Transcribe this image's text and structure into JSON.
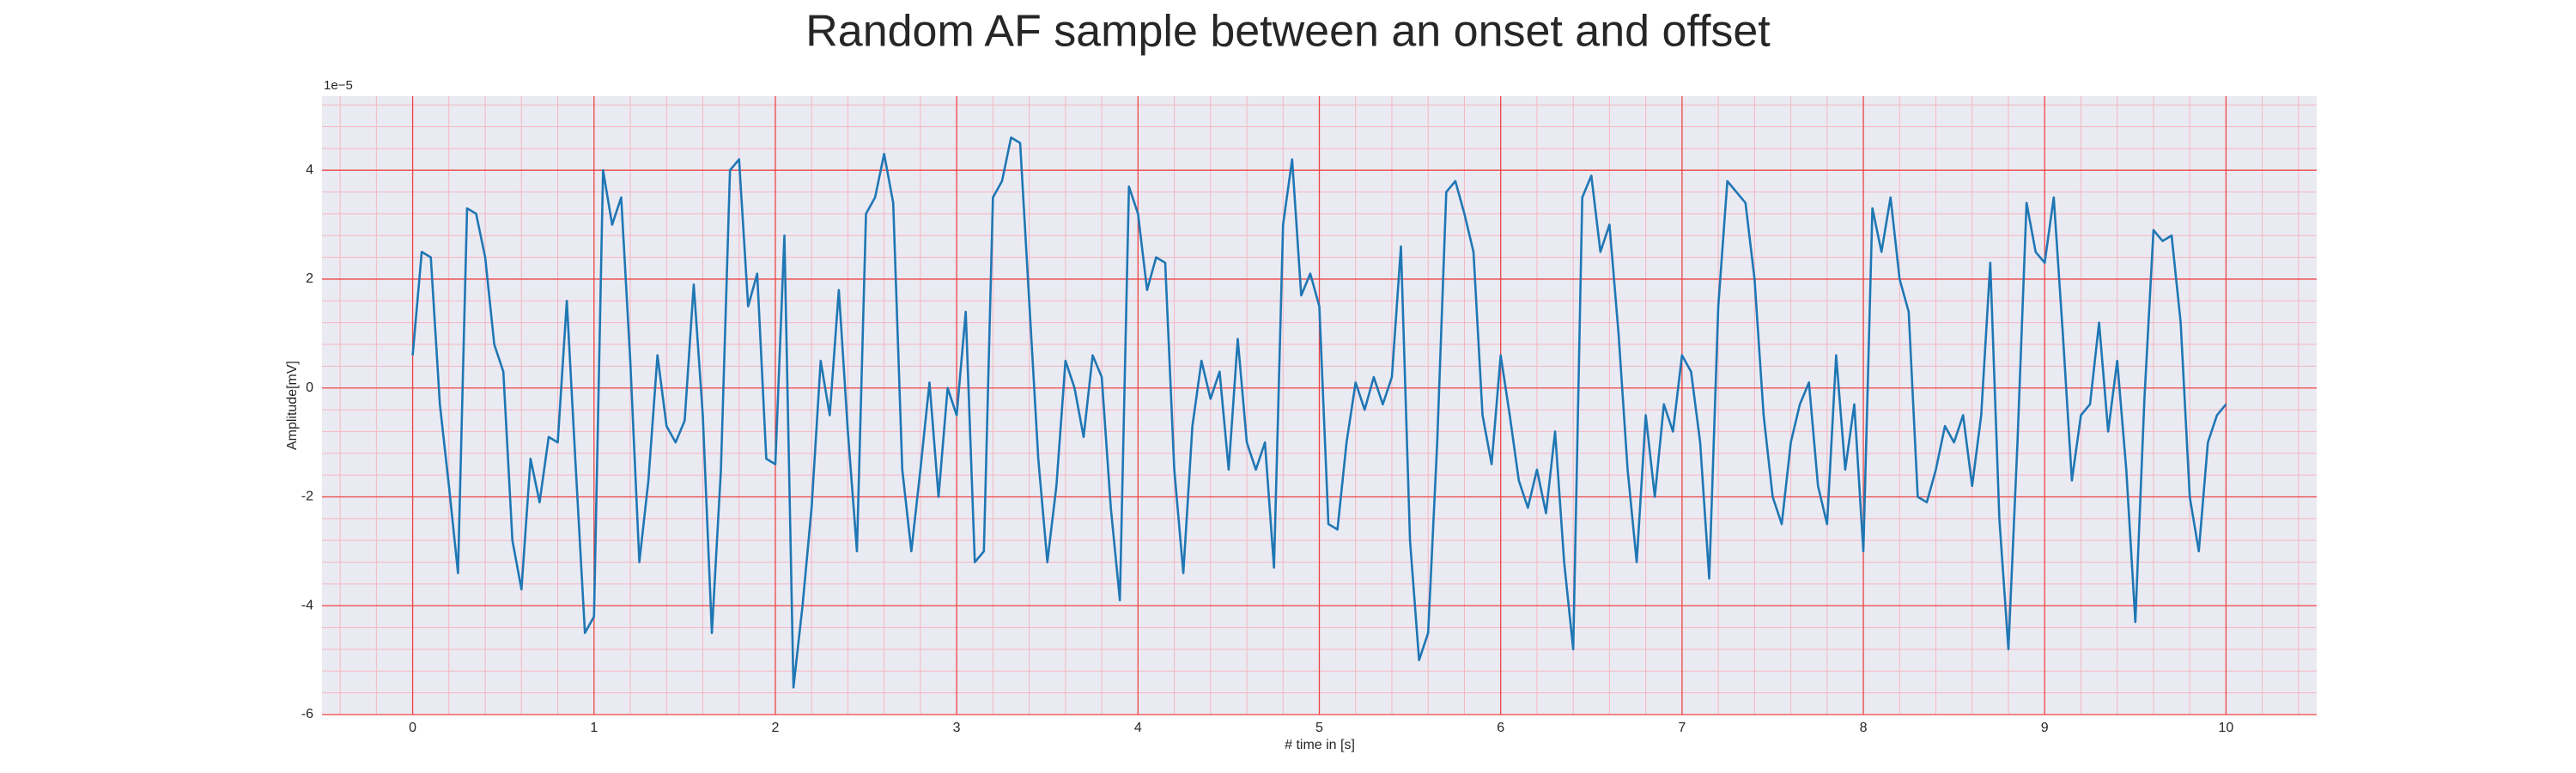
{
  "chart_data": {
    "type": "line",
    "title": "Random AF sample between an onset and offset",
    "xlabel": "# time in [s]",
    "ylabel": "Amplitude[mV]",
    "offset_text": "1e−5",
    "color": "#1f77b4",
    "xlim": [
      -0.5,
      10.5
    ],
    "xticks": [
      0,
      1,
      2,
      3,
      4,
      5,
      6,
      7,
      8,
      9,
      10
    ],
    "ylim": [
      -6,
      5.36
    ],
    "yticks": [
      -6,
      -4,
      -2,
      0,
      2,
      4
    ],
    "grid": true,
    "minor_grid": true,
    "x": [
      0,
      0.05,
      0.1,
      0.15,
      0.2,
      0.25,
      0.3,
      0.35,
      0.4,
      0.45,
      0.5,
      0.55,
      0.6,
      0.65,
      0.7,
      0.75,
      0.8,
      0.85,
      0.9,
      0.95,
      1,
      1.05,
      1.1,
      1.15,
      1.2,
      1.25,
      1.3,
      1.35,
      1.4,
      1.45,
      1.5,
      1.55,
      1.6,
      1.65,
      1.7,
      1.75,
      1.8,
      1.85,
      1.9,
      1.95,
      2,
      2.05,
      2.1,
      2.15,
      2.2,
      2.25,
      2.3,
      2.35,
      2.4,
      2.45,
      2.5,
      2.55,
      2.6,
      2.65,
      2.7,
      2.75,
      2.8,
      2.85,
      2.9,
      2.95,
      3,
      3.05,
      3.1,
      3.15,
      3.2,
      3.25,
      3.3,
      3.35,
      3.4,
      3.45,
      3.5,
      3.55,
      3.6,
      3.65,
      3.7,
      3.75,
      3.8,
      3.85,
      3.9,
      3.95,
      4,
      4.05,
      4.1,
      4.15,
      4.2,
      4.25,
      4.3,
      4.35,
      4.4,
      4.45,
      4.5,
      4.55,
      4.6,
      4.65,
      4.7,
      4.75,
      4.8,
      4.85,
      4.9,
      4.95,
      5,
      5.05,
      5.1,
      5.15,
      5.2,
      5.25,
      5.3,
      5.35,
      5.4,
      5.45,
      5.5,
      5.55,
      5.6,
      5.65,
      5.7,
      5.75,
      5.8,
      5.85,
      5.9,
      5.95,
      6,
      6.05,
      6.1,
      6.15,
      6.2,
      6.25,
      6.3,
      6.35,
      6.4,
      6.45,
      6.5,
      6.55,
      6.6,
      6.65,
      6.7,
      6.75,
      6.8,
      6.85,
      6.9,
      6.95,
      7,
      7.05,
      7.1,
      7.15,
      7.2,
      7.25,
      7.3,
      7.35,
      7.4,
      7.45,
      7.5,
      7.55,
      7.6,
      7.65,
      7.7,
      7.75,
      7.8,
      7.85,
      7.9,
      7.95,
      8,
      8.05,
      8.1,
      8.15,
      8.2,
      8.25,
      8.3,
      8.35,
      8.4,
      8.45,
      8.5,
      8.55,
      8.6,
      8.65,
      8.7,
      8.75,
      8.8,
      8.85,
      8.9,
      8.95,
      9,
      9.05,
      9.1,
      9.15,
      9.2,
      9.25,
      9.3,
      9.35,
      9.4,
      9.45,
      9.5,
      9.55,
      9.6,
      9.65,
      9.7,
      9.75,
      9.8,
      9.85,
      9.9,
      9.95,
      10
    ],
    "values": [
      0.6,
      2.5,
      2.4,
      -0.3,
      -1.8,
      -3.4,
      3.3,
      3.2,
      2.4,
      0.8,
      0.3,
      -2.8,
      -3.7,
      -1.3,
      -2.1,
      -0.9,
      -1.0,
      1.6,
      -1.5,
      -4.5,
      -4.2,
      4.0,
      3.0,
      3.5,
      0.5,
      -3.2,
      -1.7,
      0.6,
      -0.7,
      -1.0,
      -0.6,
      1.9,
      -0.5,
      -4.5,
      -1.5,
      4.0,
      4.2,
      1.5,
      2.1,
      -1.3,
      -1.4,
      2.8,
      -5.5,
      -4.0,
      -2.2,
      0.5,
      -0.5,
      1.8,
      -0.8,
      -3.0,
      3.2,
      3.5,
      4.3,
      3.4,
      -1.5,
      -3.0,
      -1.5,
      0.1,
      -2.0,
      0.0,
      -0.5,
      1.4,
      -3.2,
      -3.0,
      3.5,
      3.8,
      4.6,
      4.5,
      1.6,
      -1.3,
      -3.2,
      -1.8,
      0.5,
      0.0,
      -0.9,
      0.6,
      0.2,
      -2.2,
      -3.9,
      3.7,
      3.2,
      1.8,
      2.4,
      2.3,
      -1.5,
      -3.4,
      -0.7,
      0.5,
      -0.2,
      0.3,
      -1.5,
      0.9,
      -1.0,
      -1.5,
      -1.0,
      -3.3,
      3.0,
      4.2,
      1.7,
      2.1,
      1.5,
      -2.5,
      -2.6,
      -1.0,
      0.1,
      -0.4,
      0.2,
      -0.3,
      0.2,
      2.6,
      -2.8,
      -5.0,
      -4.5,
      -1.0,
      3.6,
      3.8,
      3.2,
      2.5,
      -0.5,
      -1.4,
      0.6,
      -0.5,
      -1.7,
      -2.2,
      -1.5,
      -2.3,
      -0.8,
      -3.2,
      -4.8,
      3.5,
      3.9,
      2.5,
      3.0,
      1.0,
      -1.5,
      -3.2,
      -0.5,
      -2.0,
      -0.3,
      -0.8,
      0.6,
      0.3,
      -1.0,
      -3.5,
      1.5,
      3.8,
      3.6,
      3.4,
      2.0,
      -0.5,
      -2.0,
      -2.5,
      -1.0,
      -0.3,
      0.1,
      -1.8,
      -2.5,
      0.6,
      -1.5,
      -0.3,
      -3.0,
      3.3,
      2.5,
      3.5,
      2.0,
      1.4,
      -2.0,
      -2.1,
      -1.5,
      -0.7,
      -1.0,
      -0.5,
      -1.8,
      -0.5,
      2.3,
      -2.4,
      -4.8,
      -1.0,
      3.4,
      2.5,
      2.3,
      3.5,
      1.0,
      -1.7,
      -0.5,
      -0.3,
      1.2,
      -0.8,
      0.5,
      -1.5,
      -4.3,
      -0.2,
      2.9,
      2.7,
      2.8,
      1.2,
      -2.0,
      -3.0,
      -1.0,
      -0.5,
      -0.3
    ]
  }
}
